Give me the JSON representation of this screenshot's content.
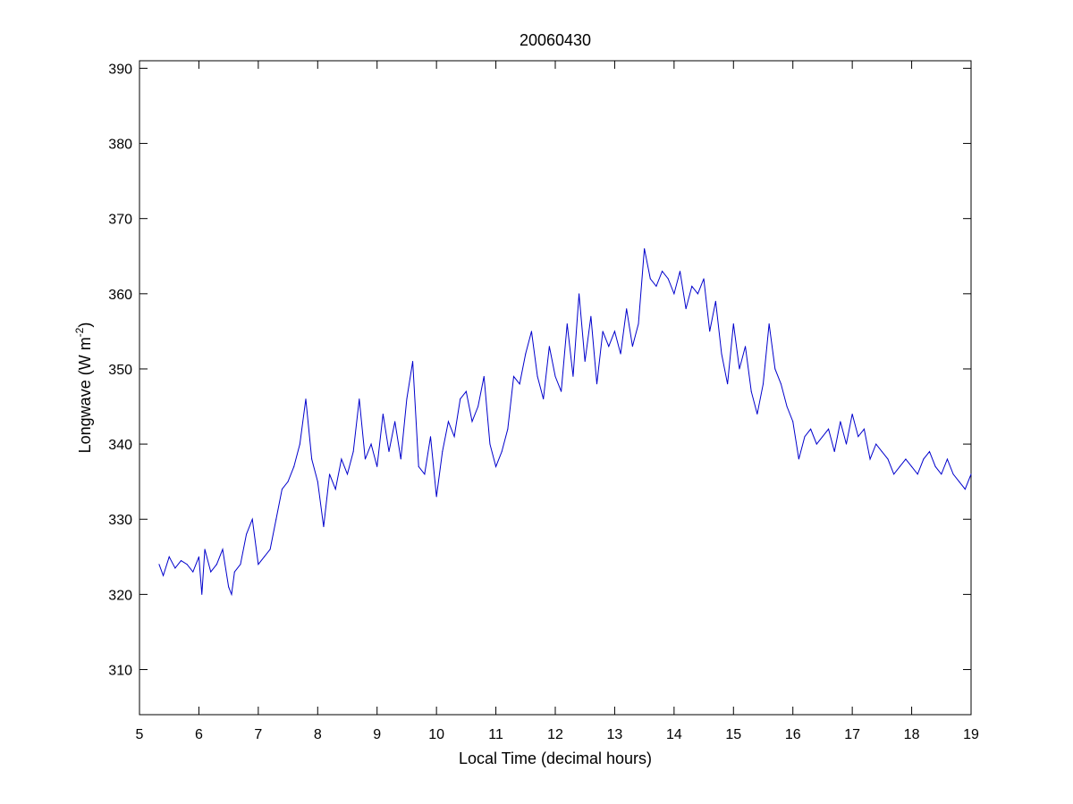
{
  "chart_data": {
    "type": "line",
    "title": "20060430",
    "xlabel": "Local Time (decimal hours)",
    "ylabel_main": "Longwave (W m",
    "ylabel_sup": "-2",
    "ylabel_close": ")",
    "xlim": [
      5,
      19
    ],
    "ylim": [
      304,
      391
    ],
    "xticks": [
      5,
      6,
      7,
      8,
      9,
      10,
      11,
      12,
      13,
      14,
      15,
      16,
      17,
      18,
      19
    ],
    "yticks": [
      310,
      320,
      330,
      340,
      350,
      360,
      370,
      380,
      390
    ],
    "grid": false,
    "line_color": "#0000cc",
    "series": [
      {
        "x": [
          5.33,
          5.4,
          5.5,
          5.6,
          5.7,
          5.8,
          5.9,
          6.0,
          6.05,
          6.1,
          6.2,
          6.3,
          6.4,
          6.5,
          6.55,
          6.6,
          6.7,
          6.8,
          6.9,
          7.0,
          7.1,
          7.2,
          7.3,
          7.4,
          7.5,
          7.6,
          7.7,
          7.8,
          7.9,
          8.0,
          8.1,
          8.2,
          8.3,
          8.4,
          8.5,
          8.6,
          8.7,
          8.8,
          8.9,
          9.0,
          9.1,
          9.2,
          9.3,
          9.4,
          9.5,
          9.6,
          9.7,
          9.8,
          9.9,
          10.0,
          10.1,
          10.2,
          10.3,
          10.4,
          10.5,
          10.6,
          10.7,
          10.8,
          10.9,
          11.0,
          11.1,
          11.2,
          11.3,
          11.4,
          11.5,
          11.6,
          11.7,
          11.8,
          11.9,
          12.0,
          12.1,
          12.2,
          12.3,
          12.4,
          12.5,
          12.6,
          12.7,
          12.8,
          12.9,
          13.0,
          13.1,
          13.2,
          13.3,
          13.4,
          13.5,
          13.6,
          13.7,
          13.8,
          13.9,
          14.0,
          14.1,
          14.2,
          14.3,
          14.4,
          14.5,
          14.6,
          14.7,
          14.8,
          14.9,
          15.0,
          15.1,
          15.2,
          15.3,
          15.4,
          15.5,
          15.6,
          15.7,
          15.8,
          15.9,
          16.0,
          16.1,
          16.2,
          16.3,
          16.4,
          16.5,
          16.6,
          16.7,
          16.8,
          16.9,
          17.0,
          17.1,
          17.2,
          17.3,
          17.4,
          17.5,
          17.6,
          17.7,
          17.8,
          17.9,
          18.0,
          18.1,
          18.2,
          18.3,
          18.4,
          18.5,
          18.6,
          18.7,
          18.8,
          18.9,
          19.0
        ],
        "y": [
          324,
          322.5,
          325,
          323.5,
          324.5,
          324,
          323,
          325,
          320,
          326,
          323,
          324,
          326,
          321,
          320,
          323,
          324,
          328,
          330,
          324,
          325,
          326,
          330,
          334,
          335,
          337,
          340,
          346,
          338,
          335,
          329,
          336,
          334,
          338,
          336,
          339,
          346,
          338,
          340,
          337,
          344,
          339,
          343,
          338,
          346,
          351,
          337,
          336,
          341,
          333,
          339,
          343,
          341,
          346,
          347,
          343,
          345,
          349,
          340,
          337,
          339,
          342,
          349,
          348,
          352,
          355,
          349,
          346,
          353,
          349,
          347,
          356,
          349,
          360,
          351,
          357,
          348,
          355,
          353,
          355,
          352,
          358,
          353,
          356,
          366,
          362,
          361,
          363,
          362,
          360,
          363,
          358,
          361,
          360,
          362,
          355,
          359,
          352,
          348,
          356,
          350,
          353,
          347,
          344,
          348,
          356,
          350,
          348,
          345,
          343,
          338,
          341,
          342,
          340,
          341,
          342,
          339,
          343,
          340,
          344,
          341,
          342,
          338,
          340,
          339,
          338,
          336,
          337,
          338,
          337,
          336,
          338,
          339,
          337,
          336,
          338,
          336,
          335,
          334,
          336
        ]
      }
    ]
  }
}
